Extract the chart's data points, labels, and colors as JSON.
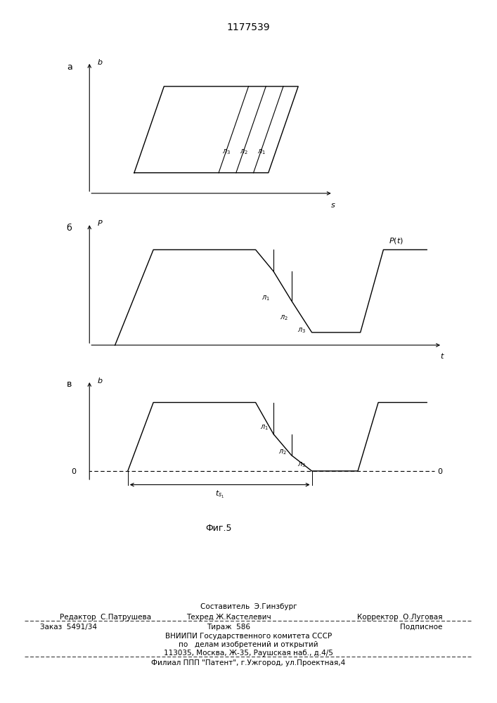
{
  "title": "1177539",
  "title_fontsize": 10,
  "fig_width": 7.07,
  "fig_height": 10.0,
  "bg_color": "#ffffff",
  "footer": {
    "sestavitel": "Составитель  Э.Гинзбург",
    "redaktor": "Редактор  С.Патрушева",
    "tehred": "Техред Ж.Кастелевич",
    "korrektor": "Корректор  О.Луговая",
    "zakaz": "Заказ  5491/34",
    "tirazh": "Тираж  586",
    "podpisnoe": "Подписное",
    "vniipи1": "ВНИИПИ Государственного комитета СССР",
    "vniipи2": "по   делам изобретений и открытий",
    "vniipи3": "113035, Москва, Ж-35, Раушская наб., д.4/5",
    "filial": "Филиал ППП \"Патент\", г.Ужгород, ул.Проектная,4"
  }
}
